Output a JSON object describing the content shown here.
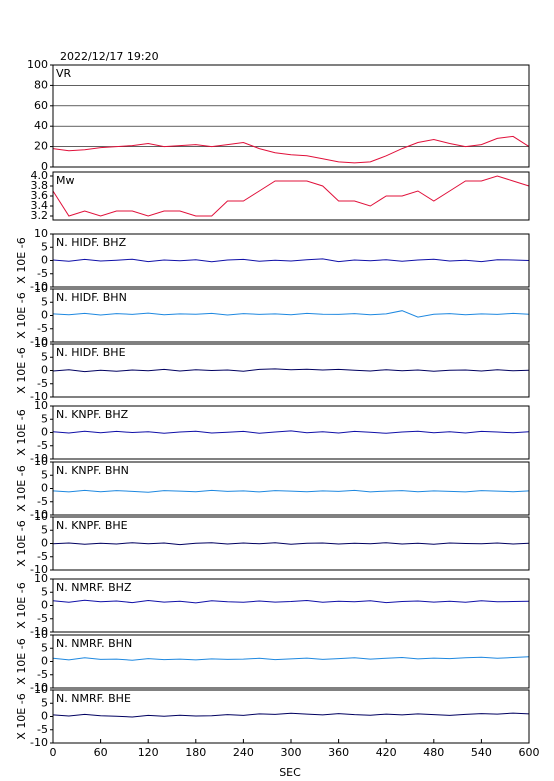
{
  "chart_data": [
    {
      "type": "line",
      "title": "2022/12/17 19:20",
      "label": "VR",
      "color": "#e0103a",
      "grid": true,
      "x": [
        0,
        20,
        40,
        60,
        80,
        100,
        120,
        140,
        160,
        180,
        200,
        220,
        240,
        260,
        280,
        300,
        320,
        340,
        360,
        380,
        400,
        420,
        440,
        460,
        480,
        500,
        520,
        540,
        560,
        580,
        600
      ],
      "values": [
        18,
        16,
        17,
        19,
        20,
        21,
        23,
        20,
        21,
        22,
        20,
        22,
        24,
        18,
        14,
        12,
        11,
        8,
        5,
        4,
        5,
        11,
        18,
        24,
        27,
        23,
        20,
        22,
        28,
        30,
        20
      ],
      "xlim": [
        0,
        600
      ],
      "ylim": [
        0,
        100
      ],
      "yticks": [
        0,
        20,
        40,
        60,
        80,
        100
      ]
    },
    {
      "type": "line",
      "label": "Mw",
      "color": "#e0103a",
      "grid": false,
      "x": [
        0,
        20,
        40,
        60,
        80,
        100,
        120,
        140,
        160,
        180,
        200,
        220,
        240,
        260,
        280,
        300,
        320,
        340,
        360,
        380,
        400,
        420,
        440,
        460,
        480,
        500,
        520,
        540,
        560,
        580,
        600
      ],
      "values": [
        3.7,
        3.2,
        3.3,
        3.2,
        3.3,
        3.3,
        3.2,
        3.3,
        3.3,
        3.2,
        3.2,
        3.5,
        3.5,
        3.7,
        3.9,
        3.9,
        3.9,
        3.8,
        3.5,
        3.5,
        3.4,
        3.6,
        3.6,
        3.7,
        3.5,
        3.7,
        3.9,
        3.9,
        4.0,
        3.9,
        3.8
      ],
      "xlim": [
        0,
        600
      ],
      "ylim": [
        3.12,
        4.08
      ],
      "yticks": [
        3.2,
        3.4,
        3.6,
        3.8,
        {
          "value": 4,
          "label": "4.0"
        }
      ]
    },
    {
      "type": "line",
      "label": "N. HIDF. BHZ",
      "ylabel": "X 10E -6",
      "color": "#1010a8",
      "grid": false,
      "x": [
        0,
        20,
        40,
        60,
        80,
        100,
        120,
        140,
        160,
        180,
        200,
        220,
        240,
        260,
        280,
        300,
        320,
        340,
        360,
        380,
        400,
        420,
        440,
        460,
        480,
        500,
        520,
        540,
        560,
        580,
        600
      ],
      "values": [
        0.2,
        -0.3,
        0.4,
        -0.2,
        0.1,
        0.5,
        -0.4,
        0.2,
        -0.1,
        0.3,
        -0.5,
        0.2,
        0.4,
        -0.3,
        0.1,
        -0.2,
        0.3,
        0.6,
        -0.4,
        0.2,
        -0.1,
        0.3,
        -0.3,
        0.2,
        0.5,
        -0.2,
        0.1,
        -0.4,
        0.3,
        0.2,
        0
      ],
      "xlim": [
        0,
        600
      ],
      "ylim": [
        -10,
        10
      ],
      "yticks": [
        -10,
        -5,
        0,
        5,
        10
      ]
    },
    {
      "type": "line",
      "label": "N. HIDF. BHN",
      "ylabel": "X 10E -6",
      "color": "#1e88e0",
      "grid": false,
      "x": [
        0,
        20,
        40,
        60,
        80,
        100,
        120,
        140,
        160,
        180,
        200,
        220,
        240,
        260,
        280,
        300,
        320,
        340,
        360,
        380,
        400,
        420,
        440,
        460,
        480,
        500,
        520,
        540,
        560,
        580,
        600
      ],
      "values": [
        0.6,
        0.3,
        0.8,
        0.2,
        0.7,
        0.4,
        0.9,
        0.3,
        0.6,
        0.5,
        0.8,
        0.2,
        0.7,
        0.4,
        0.6,
        0.3,
        0.8,
        0.5,
        0.4,
        0.7,
        0.3,
        0.6,
        1.8,
        -0.6,
        0.5,
        0.7,
        0.3,
        0.6,
        0.4,
        0.8,
        0.5
      ],
      "xlim": [
        0,
        600
      ],
      "ylim": [
        -10,
        10
      ],
      "yticks": [
        -10,
        -5,
        0,
        5,
        10
      ]
    },
    {
      "type": "line",
      "label": "N. HIDF. BHE",
      "ylabel": "X 10E -6",
      "color": "#000060",
      "grid": false,
      "x": [
        0,
        20,
        40,
        60,
        80,
        100,
        120,
        140,
        160,
        180,
        200,
        220,
        240,
        260,
        280,
        300,
        320,
        340,
        360,
        380,
        400,
        420,
        440,
        460,
        480,
        500,
        520,
        540,
        560,
        580,
        600
      ],
      "values": [
        -0.2,
        0.3,
        -0.4,
        0.1,
        -0.3,
        0.2,
        -0.1,
        0.4,
        -0.2,
        0.3,
        0,
        0.2,
        -0.3,
        0.4,
        0.6,
        0.3,
        0.5,
        0.2,
        0.4,
        0.1,
        -0.2,
        0.3,
        -0.1,
        0.2,
        -0.3,
        0.1,
        0.2,
        -0.2,
        0.3,
        -0.1,
        0.1
      ],
      "xlim": [
        0,
        600
      ],
      "ylim": [
        -10,
        10
      ],
      "yticks": [
        -10,
        -5,
        0,
        5,
        10
      ]
    },
    {
      "type": "line",
      "label": "N. KNPF. BHZ",
      "ylabel": "X 10E -6",
      "color": "#1010a8",
      "grid": false,
      "x": [
        0,
        20,
        40,
        60,
        80,
        100,
        120,
        140,
        160,
        180,
        200,
        220,
        240,
        260,
        280,
        300,
        320,
        340,
        360,
        380,
        400,
        420,
        440,
        460,
        480,
        500,
        520,
        540,
        560,
        580,
        600
      ],
      "values": [
        0.3,
        -0.2,
        0.5,
        -0.1,
        0.4,
        0,
        0.3,
        -0.3,
        0.2,
        0.5,
        -0.2,
        0.1,
        0.4,
        -0.3,
        0.2,
        0.6,
        -0.1,
        0.3,
        -0.2,
        0.4,
        0.1,
        -0.3,
        0.2,
        0.5,
        -0.1,
        0.3,
        -0.2,
        0.4,
        0.2,
        -0.1,
        0.3
      ],
      "xlim": [
        0,
        600
      ],
      "ylim": [
        -10,
        10
      ],
      "yticks": [
        -10,
        -5,
        0,
        5,
        10
      ]
    },
    {
      "type": "line",
      "label": "N. KNPF. BHN",
      "ylabel": "X 10E -6",
      "color": "#1e88e0",
      "grid": false,
      "x": [
        0,
        20,
        40,
        60,
        80,
        100,
        120,
        140,
        160,
        180,
        200,
        220,
        240,
        260,
        280,
        300,
        320,
        340,
        360,
        380,
        400,
        420,
        440,
        460,
        480,
        500,
        520,
        540,
        560,
        580,
        600
      ],
      "values": [
        -0.9,
        -1.3,
        -0.7,
        -1.2,
        -0.8,
        -1.1,
        -1.4,
        -0.8,
        -1.0,
        -1.2,
        -0.7,
        -1.1,
        -0.9,
        -1.3,
        -0.8,
        -1.0,
        -1.2,
        -0.9,
        -1.1,
        -0.7,
        -1.3,
        -1.0,
        -0.8,
        -1.2,
        -0.9,
        -1.1,
        -1.3,
        -0.8,
        -1.0,
        -1.2,
        -0.9
      ],
      "xlim": [
        0,
        600
      ],
      "ylim": [
        -10,
        10
      ],
      "yticks": [
        -10,
        -5,
        0,
        5,
        10
      ]
    },
    {
      "type": "line",
      "label": "N. KNPF. BHE",
      "ylabel": "X 10E -6",
      "color": "#000060",
      "grid": false,
      "x": [
        0,
        20,
        40,
        60,
        80,
        100,
        120,
        140,
        160,
        180,
        200,
        220,
        240,
        260,
        280,
        300,
        320,
        340,
        360,
        380,
        400,
        420,
        440,
        460,
        480,
        500,
        520,
        540,
        560,
        580,
        600
      ],
      "values": [
        -0.1,
        0.2,
        -0.3,
        0.1,
        -0.2,
        0.3,
        -0.1,
        0.2,
        -0.4,
        0.1,
        0.3,
        -0.2,
        0.2,
        -0.1,
        0.3,
        -0.3,
        0.1,
        0.2,
        -0.2,
        0.1,
        -0.1,
        0.3,
        -0.2,
        0.1,
        -0.3,
        0.2,
        0,
        -0.1,
        0.2,
        -0.2,
        0.1
      ],
      "xlim": [
        0,
        600
      ],
      "ylim": [
        -10,
        10
      ],
      "yticks": [
        -10,
        -5,
        0,
        5,
        10
      ]
    },
    {
      "type": "line",
      "label": "N. NMRF. BHZ",
      "ylabel": "X 10E -6",
      "color": "#1010a8",
      "grid": false,
      "x": [
        0,
        20,
        40,
        60,
        80,
        100,
        120,
        140,
        160,
        180,
        200,
        220,
        240,
        260,
        280,
        300,
        320,
        340,
        360,
        380,
        400,
        420,
        440,
        460,
        480,
        500,
        520,
        540,
        560,
        580,
        600
      ],
      "values": [
        1.8,
        1.2,
        2.0,
        1.4,
        1.7,
        1.1,
        1.9,
        1.3,
        1.6,
        1.0,
        1.8,
        1.4,
        1.2,
        1.7,
        1.3,
        1.5,
        1.9,
        1.2,
        1.6,
        1.4,
        1.8,
        1.1,
        1.5,
        1.7,
        1.3,
        1.6,
        1.2,
        1.8,
        1.4,
        1.5,
        1.6
      ],
      "xlim": [
        0,
        600
      ],
      "ylim": [
        -10,
        10
      ],
      "yticks": [
        -10,
        -5,
        0,
        5,
        10
      ]
    },
    {
      "type": "line",
      "label": "N. NMRF. BHN",
      "ylabel": "X 10E -6",
      "color": "#1e88e0",
      "grid": false,
      "x": [
        0,
        20,
        40,
        60,
        80,
        100,
        120,
        140,
        160,
        180,
        200,
        220,
        240,
        260,
        280,
        300,
        320,
        340,
        360,
        380,
        400,
        420,
        440,
        460,
        480,
        500,
        520,
        540,
        560,
        580,
        600
      ],
      "values": [
        1.2,
        0.6,
        1.4,
        0.8,
        0.9,
        0.5,
        1.1,
        0.7,
        0.9,
        0.6,
        1.0,
        0.8,
        0.9,
        1.2,
        0.7,
        1.0,
        1.3,
        0.8,
        1.1,
        1.4,
        0.9,
        1.2,
        1.5,
        1.0,
        1.3,
        1.1,
        1.4,
        1.6,
        1.2,
        1.5,
        1.8
      ],
      "xlim": [
        0,
        600
      ],
      "ylim": [
        -10,
        10
      ],
      "yticks": [
        -10,
        -5,
        0,
        5,
        10
      ]
    },
    {
      "type": "line",
      "label": "N. NMRF. BHE",
      "ylabel": "X 10E -6",
      "color": "#000060",
      "grid": false,
      "x": [
        0,
        20,
        40,
        60,
        80,
        100,
        120,
        140,
        160,
        180,
        200,
        220,
        240,
        260,
        280,
        300,
        320,
        340,
        360,
        380,
        400,
        420,
        440,
        460,
        480,
        500,
        520,
        540,
        560,
        580,
        600
      ],
      "values": [
        0.6,
        0.2,
        0.8,
        0.3,
        0.1,
        -0.2,
        0.4,
        0.1,
        0.5,
        0.2,
        0.3,
        0.7,
        0.4,
        1.0,
        0.8,
        1.2,
        0.9,
        0.6,
        1.1,
        0.7,
        0.5,
        0.9,
        0.6,
        1.0,
        0.7,
        0.4,
        0.8,
        1.1,
        0.9,
        1.3,
        1.0
      ],
      "xlim": [
        0,
        600
      ],
      "ylim": [
        -10,
        10
      ],
      "yticks": [
        -10,
        -5,
        0,
        5,
        10
      ],
      "xticks": [
        0,
        60,
        120,
        180,
        240,
        300,
        360,
        420,
        480,
        540,
        600
      ],
      "xlabel": "SEC"
    }
  ]
}
